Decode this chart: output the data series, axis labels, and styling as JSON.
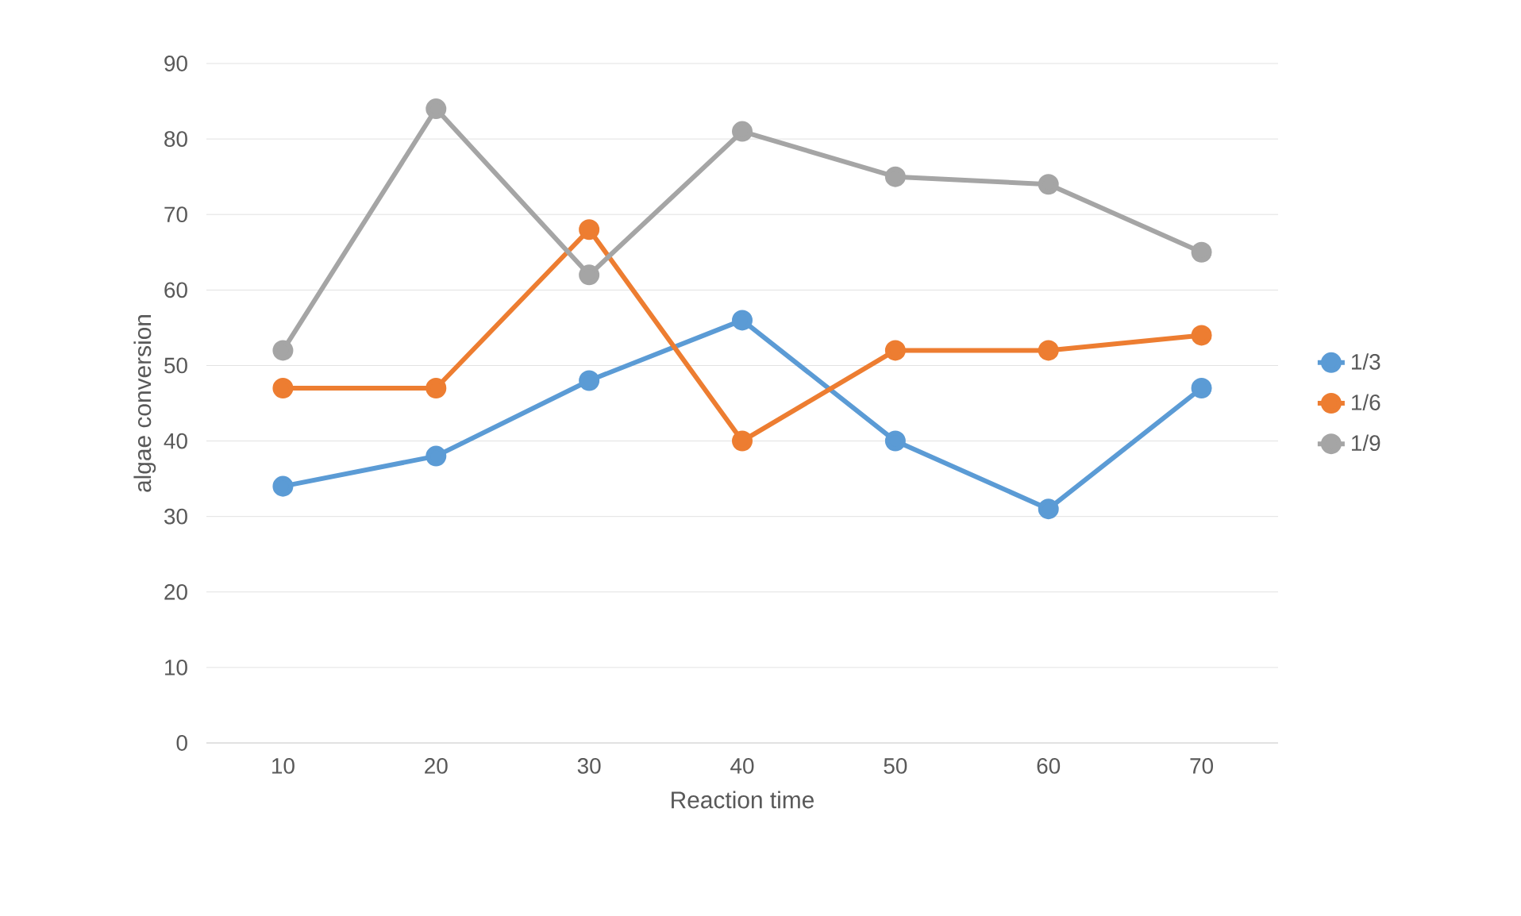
{
  "chart_data": {
    "type": "line",
    "xlabel": "Reaction time",
    "ylabel": "algae conversion",
    "categories": [
      "10",
      "20",
      "30",
      "40",
      "50",
      "60",
      "70"
    ],
    "series": [
      {
        "name": "1/3",
        "color": "#5b9bd5",
        "values": [
          34,
          38,
          48,
          56,
          40,
          31,
          47
        ]
      },
      {
        "name": "1/6",
        "color": "#ed7d31",
        "values": [
          47,
          47,
          68,
          40,
          52,
          52,
          54
        ]
      },
      {
        "name": "1/9",
        "color": "#a5a5a5",
        "values": [
          52,
          84,
          62,
          81,
          75,
          74,
          65
        ]
      }
    ],
    "ylim": [
      0,
      90
    ],
    "yticks": [
      0,
      10,
      20,
      30,
      40,
      50,
      60,
      70,
      80,
      90
    ],
    "grid": "y",
    "legend": "right",
    "marker": "circle",
    "line_style": "solid"
  }
}
